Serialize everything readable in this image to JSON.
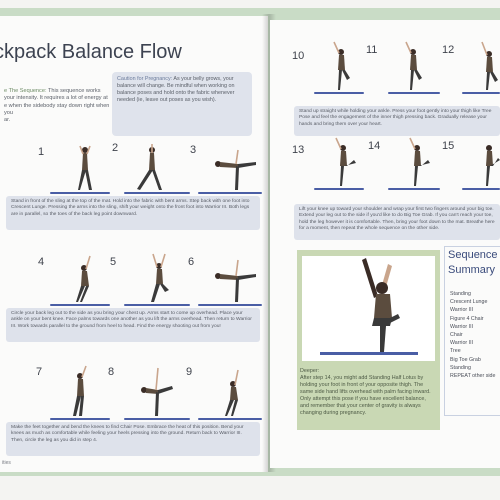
{
  "left_page": {
    "title": "ckpack Balance Flow",
    "intro": {
      "lead": "e The Sequence:",
      "lines": [
        "This sequence works",
        "your intensity. It requires a lot of energy at",
        "e when the sidebody stay down right when you",
        "ar."
      ]
    },
    "caution": {
      "label": "Caution for Pregnancy:",
      "text": "As your belly grows, your balance will change. Be mindful when working on balance poses and hold onto the fabric whenever needed (ie, leave out poses as you wish)."
    },
    "steps_row1": [
      "1",
      "2",
      "3"
    ],
    "caption1": "Stand in front of the sling at the top of the mat. Hold into the fabric with bent arms. Step back with one foot into Crescent Lunge. Pressing the arms into the sling, shift your weight onto the front foot into Warrior III. Both legs are in parallel, so the toes of the back leg point downward.",
    "steps_row2": [
      "4",
      "5",
      "6"
    ],
    "caption2": "Circle your back leg out to the side as you bring your chest up. Arms start to come up overhead. Place your ankle on your bent knee. Face palms towards one another as you lift the arms overhead. Then return to Warrior III. Work towards parallel to the ground from heel to head. Find the energy shooting out from you!",
    "steps_row3": [
      "7",
      "8",
      "9"
    ],
    "caption3": "Make the feet together and bend the knees to find Chair Pose. Embrace the heat of this position. Bend your knees as much as comfortable while feeling your heels pressing into the ground. Return back to Warrior III. Then, circle the leg as you did in step 4.",
    "footer": "ities"
  },
  "right_page": {
    "steps_row1": [
      "10",
      "11",
      "12"
    ],
    "caption1": "Stand up straight while holding your ankle. Press your foot gently into your thigh like Tree Pose and feel the engagement of the inner thigh pressing back. Gradually release your hands and bring them over your heart.",
    "steps_row2": [
      "13",
      "14",
      "15"
    ],
    "caption2": "Lift your knee up toward your shoulder and wrap your first two fingers around your big toe. Extend your leg out to the side if you'd like to do Big Toe Grab. If you can't reach your toe, hold the leg however it is comfortable. Then, bring your foot down to the mat. Breathe here for a moment, then repeat the whole sequence on the other side.",
    "deeper": {
      "label": "Deeper:",
      "text": "After step 14, you might add Standing Half Lotus by holding your foot in front of your opposite thigh. The same side hand lifts overhead with palm facing inward. Only attempt this pose if you have excellent balance, and remember that your center of gravity is always changing during pregnancy."
    },
    "summary": {
      "title_line1": "Sequence",
      "title_line2": "Summary",
      "items": [
        "Standing",
        "Crescent Lunge",
        "Warrior III",
        "Figure 4 Chair",
        "Warrior III",
        "Chair",
        "Warrior III",
        "Tree",
        "Big Toe Grab",
        "Standing",
        "REPEAT other side"
      ]
    }
  },
  "colors": {
    "cover": "#c9dcc6",
    "caption_bg": "#dee2eb",
    "mat": "#4a5ea5",
    "title": "#3d4351",
    "photo_frame": "#c9d8b4"
  }
}
